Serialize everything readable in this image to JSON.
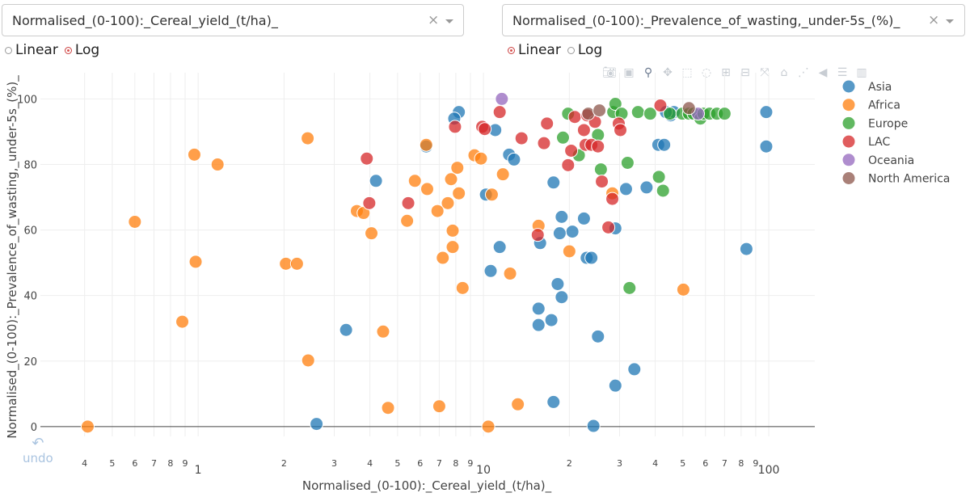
{
  "x_dropdown": {
    "value": "Normalised_(0-100):_Cereal_yield_(t/ha)_"
  },
  "y_dropdown": {
    "value": "Normalised_(0-100):_Prevalence_of_wasting,_under-5s_(%)_"
  },
  "x_scale": {
    "linear": "Linear",
    "log": "Log",
    "selected": "Log"
  },
  "y_scale": {
    "linear": "Linear",
    "log": "Log",
    "selected": "Linear"
  },
  "undo_label": "undo",
  "colors": {
    "Asia": "#1f77b4",
    "Africa": "#ff7f0e",
    "Europe": "#2ca02c",
    "LAC": "#d62728",
    "Oceania": "#9467bd",
    "North America": "#8c564b"
  },
  "chart_data": {
    "type": "scatter",
    "xlabel": "Normalised_(0-100):_Cereal_yield_(t/ha)_",
    "ylabel": "Normalised_(0-100):_Prevalence_of_wasting,_under-5s_(%)_",
    "xscale": "log",
    "xlim": [
      0.28,
      145
    ],
    "ylim": [
      -3,
      108
    ],
    "yticks": [
      0,
      20,
      40,
      60,
      80,
      100
    ],
    "xticks": [
      {
        "v": 0.4,
        "label": "4"
      },
      {
        "v": 0.5,
        "label": "5"
      },
      {
        "v": 0.6,
        "label": "6"
      },
      {
        "v": 0.7,
        "label": "7"
      },
      {
        "v": 0.8,
        "label": "8"
      },
      {
        "v": 0.9,
        "label": "9"
      },
      {
        "v": 1,
        "label": "1",
        "major": true
      },
      {
        "v": 2,
        "label": "2"
      },
      {
        "v": 3,
        "label": "3"
      },
      {
        "v": 4,
        "label": "4"
      },
      {
        "v": 5,
        "label": "5"
      },
      {
        "v": 6,
        "label": "6"
      },
      {
        "v": 7,
        "label": "7"
      },
      {
        "v": 8,
        "label": "8"
      },
      {
        "v": 9,
        "label": "9"
      },
      {
        "v": 10,
        "label": "10",
        "major": true
      },
      {
        "v": 20,
        "label": "2"
      },
      {
        "v": 30,
        "label": "3"
      },
      {
        "v": 40,
        "label": "4"
      },
      {
        "v": 50,
        "label": "5"
      },
      {
        "v": 60,
        "label": "6"
      },
      {
        "v": 70,
        "label": "7"
      },
      {
        "v": 80,
        "label": "8"
      },
      {
        "v": 90,
        "label": "9"
      },
      {
        "v": 100,
        "label": "100",
        "major": true
      }
    ],
    "legend": [
      "Asia",
      "Africa",
      "Europe",
      "LAC",
      "Oceania",
      "North America"
    ],
    "series": [
      {
        "name": "Asia",
        "points": [
          [
            8.2,
            96
          ],
          [
            7.9,
            94
          ],
          [
            6.3,
            85.5
          ],
          [
            11,
            90.5
          ],
          [
            12.3,
            83
          ],
          [
            12.8,
            81.5
          ],
          [
            4.2,
            75
          ],
          [
            10.2,
            70.8
          ],
          [
            17.6,
            74.5
          ],
          [
            22.5,
            63.5
          ],
          [
            18.8,
            64
          ],
          [
            20.5,
            59.5
          ],
          [
            18.5,
            59
          ],
          [
            15.8,
            56
          ],
          [
            11.4,
            54.8
          ],
          [
            23,
            51.5
          ],
          [
            23.9,
            51.5
          ],
          [
            10.6,
            47.5
          ],
          [
            18.2,
            43.5
          ],
          [
            18.8,
            39.5
          ],
          [
            15.6,
            36
          ],
          [
            15.6,
            31
          ],
          [
            17.3,
            32.5
          ],
          [
            25.2,
            27.5
          ],
          [
            29,
            12.5
          ],
          [
            33.8,
            17.5
          ],
          [
            17.6,
            7.5
          ],
          [
            24.3,
            0.2
          ],
          [
            3.3,
            29.5
          ],
          [
            2.6,
            0.8
          ],
          [
            29,
            60.5
          ],
          [
            31.6,
            72.5
          ],
          [
            37.3,
            73
          ],
          [
            41,
            86
          ],
          [
            43,
            86
          ],
          [
            45.3,
            95
          ],
          [
            46.5,
            96
          ],
          [
            43.6,
            96
          ],
          [
            98,
            96
          ],
          [
            98,
            85.5
          ],
          [
            83.5,
            54.2
          ]
        ]
      },
      {
        "name": "Africa",
        "points": [
          [
            0.41,
            0
          ],
          [
            0.6,
            62.5
          ],
          [
            0.88,
            32
          ],
          [
            0.97,
            83
          ],
          [
            0.98,
            50.3
          ],
          [
            1.17,
            80
          ],
          [
            2.03,
            49.7
          ],
          [
            2.22,
            49.7
          ],
          [
            2.42,
            88
          ],
          [
            2.43,
            20.2
          ],
          [
            3.6,
            65.8
          ],
          [
            3.8,
            65.2
          ],
          [
            4.05,
            59
          ],
          [
            4.45,
            29
          ],
          [
            4.63,
            5.7
          ],
          [
            5.4,
            62.8
          ],
          [
            5.75,
            75
          ],
          [
            6.3,
            86
          ],
          [
            6.35,
            72.5
          ],
          [
            6.9,
            65.8
          ],
          [
            7.2,
            51.5
          ],
          [
            7.5,
            68.2
          ],
          [
            7.7,
            75.5
          ],
          [
            7.8,
            59.8
          ],
          [
            7.8,
            54.8
          ],
          [
            8.1,
            79
          ],
          [
            8.2,
            71.2
          ],
          [
            8.45,
            42.3
          ],
          [
            9.3,
            82.8
          ],
          [
            9.8,
            81.8
          ],
          [
            10.7,
            70.8
          ],
          [
            11.7,
            77
          ],
          [
            12.4,
            46.7
          ],
          [
            13.2,
            6.8
          ],
          [
            15.6,
            61.3
          ],
          [
            20,
            53.5
          ],
          [
            28.3,
            71.2
          ],
          [
            50.2,
            41.8
          ],
          [
            7,
            6.2
          ],
          [
            10.4,
            0
          ]
        ]
      },
      {
        "name": "Europe",
        "points": [
          [
            19,
            88.2
          ],
          [
            19.8,
            95.5
          ],
          [
            21.6,
            82.8
          ],
          [
            25.2,
            89
          ],
          [
            25.8,
            78.5
          ],
          [
            28.5,
            96
          ],
          [
            29,
            98.5
          ],
          [
            30.5,
            95.5
          ],
          [
            32,
            80.5
          ],
          [
            32.5,
            42.3
          ],
          [
            34.8,
            96
          ],
          [
            38.4,
            95.5
          ],
          [
            41.2,
            76.2
          ],
          [
            42.6,
            72
          ],
          [
            45,
            95.5
          ],
          [
            49.8,
            95.5
          ],
          [
            52.5,
            95.5
          ],
          [
            54.5,
            95.5
          ],
          [
            57.6,
            94
          ],
          [
            59,
            95.5
          ],
          [
            62,
            95.5
          ],
          [
            65.8,
            95.5
          ],
          [
            70,
            95.5
          ]
        ]
      },
      {
        "name": "LAC",
        "points": [
          [
            3.9,
            81.8
          ],
          [
            3.98,
            68.2
          ],
          [
            5.45,
            68.2
          ],
          [
            7.95,
            91.5
          ],
          [
            9.9,
            91.5
          ],
          [
            10.1,
            90.8
          ],
          [
            11.4,
            96
          ],
          [
            13.6,
            88
          ],
          [
            15.5,
            58.5
          ],
          [
            16.3,
            86.5
          ],
          [
            16.7,
            92.5
          ],
          [
            19.8,
            79.8
          ],
          [
            20.3,
            84.2
          ],
          [
            20.9,
            94.5
          ],
          [
            22.5,
            90.5
          ],
          [
            22.8,
            86
          ],
          [
            23.1,
            95
          ],
          [
            23.9,
            86
          ],
          [
            24.6,
            93
          ],
          [
            25.2,
            85.5
          ],
          [
            26,
            74.8
          ],
          [
            27.4,
            60.8
          ],
          [
            28.3,
            69.5
          ],
          [
            29.8,
            92.5
          ],
          [
            30.2,
            90.5
          ],
          [
            41.7,
            98
          ]
        ]
      },
      {
        "name": "Oceania",
        "points": [
          [
            11.6,
            100
          ],
          [
            56.5,
            95.5
          ]
        ]
      },
      {
        "name": "North America",
        "points": [
          [
            23.3,
            95.5
          ],
          [
            25.5,
            96.5
          ],
          [
            52.5,
            97.2
          ]
        ]
      }
    ]
  }
}
